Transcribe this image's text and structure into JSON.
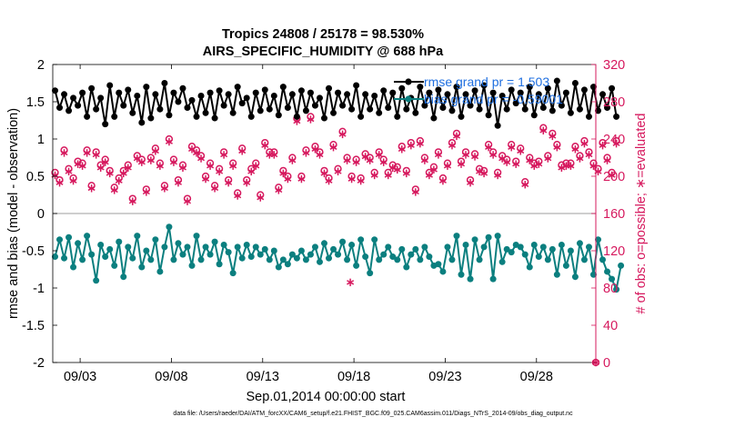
{
  "chart_data": {
    "type": "line",
    "title_line1": "Tropics 24808 / 25178 = 98.530%",
    "title_line2": "AIRS_SPECIFIC_HUMIDITY @ 688 hPa",
    "xlabel": "Sep.01,2014 00:00:00 start",
    "ylabel_left": "rmse and bias (model - observation)",
    "ylabel_right": "# of obs: o=possible; ∗=evaluated",
    "footer": "data file: /Users/raeder/DAI/ATM_forcXX/CAM6_setup/f.e21.FHIST_BGC.f09_025.CAM6assim.011/Diags_NTrS_2014-09/obs_diag_output.nc",
    "ylim_left": [
      -2,
      2
    ],
    "ylim_right": [
      0,
      320
    ],
    "xlim_days": [
      1.5,
      31.25
    ],
    "left_ticks": [
      "-2",
      "-1.5",
      "-1",
      "-0.5",
      "0",
      "0.5",
      "1",
      "1.5",
      "2"
    ],
    "right_ticks": [
      "0",
      "40",
      "80",
      "120",
      "160",
      "200",
      "240",
      "280",
      "320"
    ],
    "x_ticks": [
      {
        "day": 3,
        "label": "09/03"
      },
      {
        "day": 8,
        "label": "09/08"
      },
      {
        "day": 13,
        "label": "09/13"
      },
      {
        "day": 18,
        "label": "09/18"
      },
      {
        "day": 23,
        "label": "09/23"
      },
      {
        "day": 28,
        "label": "09/28"
      }
    ],
    "colors": {
      "rmse": "#000000",
      "bias": "#0b7f7f",
      "obs": "#d6195e",
      "axis_left": "#000000",
      "axis_right": "#d6195e",
      "legend_text": "#1f6fe0"
    },
    "legend": [
      {
        "label": "rmse grand pr = 1.503",
        "series": "rmse"
      },
      {
        "label": "bias grand pr = -0.59001",
        "series": "bias"
      }
    ],
    "series": [
      {
        "name": "rmse",
        "start_day": 1.625,
        "step_day": 0.25,
        "values": [
          1.65,
          1.42,
          1.6,
          1.38,
          1.55,
          1.45,
          1.62,
          1.3,
          1.68,
          1.4,
          1.55,
          1.2,
          1.72,
          1.3,
          1.62,
          1.45,
          1.66,
          1.35,
          1.58,
          1.22,
          1.7,
          1.28,
          1.6,
          1.4,
          1.75,
          1.32,
          1.62,
          1.5,
          1.68,
          1.42,
          1.52,
          1.3,
          1.58,
          1.35,
          1.62,
          1.28,
          1.65,
          1.45,
          1.6,
          1.35,
          1.7,
          1.48,
          1.55,
          1.3,
          1.62,
          1.38,
          1.66,
          1.4,
          1.58,
          1.32,
          1.7,
          1.42,
          1.6,
          1.3,
          1.65,
          1.38,
          1.62,
          1.45,
          1.55,
          1.28,
          1.68,
          1.35,
          1.62,
          1.45,
          1.6,
          1.4,
          1.72,
          1.3,
          1.6,
          1.4,
          1.58,
          1.35,
          1.65,
          1.42,
          1.62,
          1.3,
          1.68,
          1.4,
          1.55,
          1.35,
          1.7,
          1.45,
          1.62,
          1.28,
          1.66,
          1.42,
          1.6,
          1.38,
          1.7,
          1.3,
          1.6,
          1.45,
          1.65,
          1.4,
          1.72,
          1.32,
          1.62,
          1.18,
          1.58,
          1.4,
          1.66,
          1.48,
          1.62,
          1.4,
          1.7,
          1.32,
          1.6,
          1.42,
          1.68,
          1.38,
          1.78,
          1.45,
          1.62,
          1.35,
          1.75,
          1.4,
          1.66,
          1.3,
          1.7,
          1.38,
          1.6,
          1.42,
          1.68,
          1.3
        ]
      },
      {
        "name": "bias",
        "start_day": 1.625,
        "step_day": 0.25,
        "values": [
          -0.58,
          -0.35,
          -0.6,
          -0.32,
          -0.72,
          -0.4,
          -0.62,
          -0.3,
          -0.55,
          -0.9,
          -0.42,
          -0.58,
          -0.48,
          -0.7,
          -0.38,
          -0.85,
          -0.45,
          -0.6,
          -0.3,
          -0.72,
          -0.5,
          -0.62,
          -0.35,
          -0.78,
          -0.45,
          -0.18,
          -0.62,
          -0.4,
          -0.55,
          -0.45,
          -0.7,
          -0.3,
          -0.62,
          -0.45,
          -0.55,
          -0.38,
          -0.68,
          -0.42,
          -0.52,
          -0.8,
          -0.45,
          -0.6,
          -0.42,
          -0.58,
          -0.45,
          -0.55,
          -0.48,
          -0.62,
          -0.5,
          -0.72,
          -0.62,
          -0.68,
          -0.55,
          -0.6,
          -0.5,
          -0.62,
          -0.55,
          -0.45,
          -0.65,
          -0.4,
          -0.6,
          -0.48,
          -0.55,
          -0.38,
          -0.62,
          -0.42,
          -0.7,
          -0.35,
          -0.58,
          -0.8,
          -0.35,
          -0.62,
          -0.55,
          -0.45,
          -0.58,
          -0.62,
          -0.48,
          -0.72,
          -0.55,
          -0.48,
          -0.62,
          -0.45,
          -0.58,
          -0.7,
          -0.68,
          -0.78,
          -0.45,
          -0.62,
          -0.3,
          -0.82,
          -0.42,
          -0.88,
          -0.35,
          -0.62,
          -0.45,
          -0.32,
          -0.88,
          -0.3,
          -0.65,
          -0.48,
          -0.52,
          -0.42,
          -0.45,
          -0.55,
          -0.72,
          -0.42,
          -0.58,
          -0.45,
          -0.62,
          -0.48,
          -0.82,
          -0.42,
          -0.7,
          -0.5,
          -0.85,
          -0.4,
          -0.62,
          -0.45,
          -0.82,
          -0.35,
          -0.62,
          -0.78,
          -0.88,
          -1.02,
          -0.7
        ]
      },
      {
        "name": "obs_possible",
        "axis": "right",
        "start_day": 1.625,
        "step_day": 0.25,
        "values": [
          204,
          196,
          228,
          208,
          198,
          216,
          214,
          228,
          190,
          226,
          212,
          218,
          206,
          188,
          198,
          206,
          212,
          176,
          222,
          218,
          186,
          220,
          230,
          214,
          190,
          240,
          218,
          196,
          212,
          176,
          232,
          228,
          222,
          200,
          214,
          190,
          208,
          226,
          196,
          214,
          182,
          230,
          196,
          208,
          214,
          180,
          236,
          226,
          226,
          188,
          206,
          200,
          220,
          262,
          200,
          228,
          264,
          232,
          226,
          206,
          198,
          234,
          208,
          248,
          220,
          200,
          218,
          198,
          224,
          220,
          204,
          226,
          218,
          204,
          212,
          210,
          232,
          206,
          236,
          186,
          238,
          220,
          204,
          210,
          226,
          198,
          214,
          236,
          246,
          216,
          226,
          196,
          224,
          208,
          206,
          234,
          226,
          204,
          222,
          218,
          234,
          216,
          230,
          194,
          220,
          214,
          216,
          252,
          222,
          246,
          234,
          212,
          214,
          214,
          232,
          222,
          238,
          226,
          214,
          208,
          236,
          220,
          204,
          238
        ]
      },
      {
        "name": "obs_evaluated",
        "axis": "right",
        "start_day": 1.625,
        "step_day": 0.25,
        "values": [
          201,
          193,
          225,
          205,
          195,
          213,
          211,
          225,
          187,
          223,
          209,
          215,
          203,
          185,
          195,
          203,
          209,
          173,
          219,
          215,
          183,
          217,
          227,
          211,
          187,
          237,
          215,
          193,
          209,
          173,
          229,
          225,
          219,
          197,
          211,
          187,
          205,
          223,
          193,
          211,
          179,
          227,
          193,
          205,
          211,
          177,
          233,
          223,
          223,
          185,
          203,
          197,
          217,
          259,
          197,
          225,
          261,
          229,
          223,
          203,
          195,
          231,
          205,
          245,
          217,
          197,
          215,
          195,
          221,
          217,
          201,
          223,
          215,
          201,
          209,
          207,
          229,
          203,
          233,
          183,
          235,
          217,
          201,
          207,
          223,
          195,
          211,
          233,
          243,
          213,
          223,
          193,
          221,
          205,
          203,
          231,
          223,
          201,
          219,
          215,
          231,
          213,
          227,
          191,
          217,
          211,
          213,
          249,
          219,
          243,
          231,
          209,
          211,
          211,
          229,
          219,
          235,
          223,
          211,
          205,
          233,
          217,
          201,
          235
        ]
      }
    ],
    "extra_marks": [
      {
        "series": "obs_evaluated",
        "day": 17.8,
        "value": 86
      },
      {
        "series": "obs_possible",
        "day": 31.25,
        "value": 0
      },
      {
        "series": "obs_evaluated",
        "day": 31.25,
        "value": 0
      }
    ]
  }
}
